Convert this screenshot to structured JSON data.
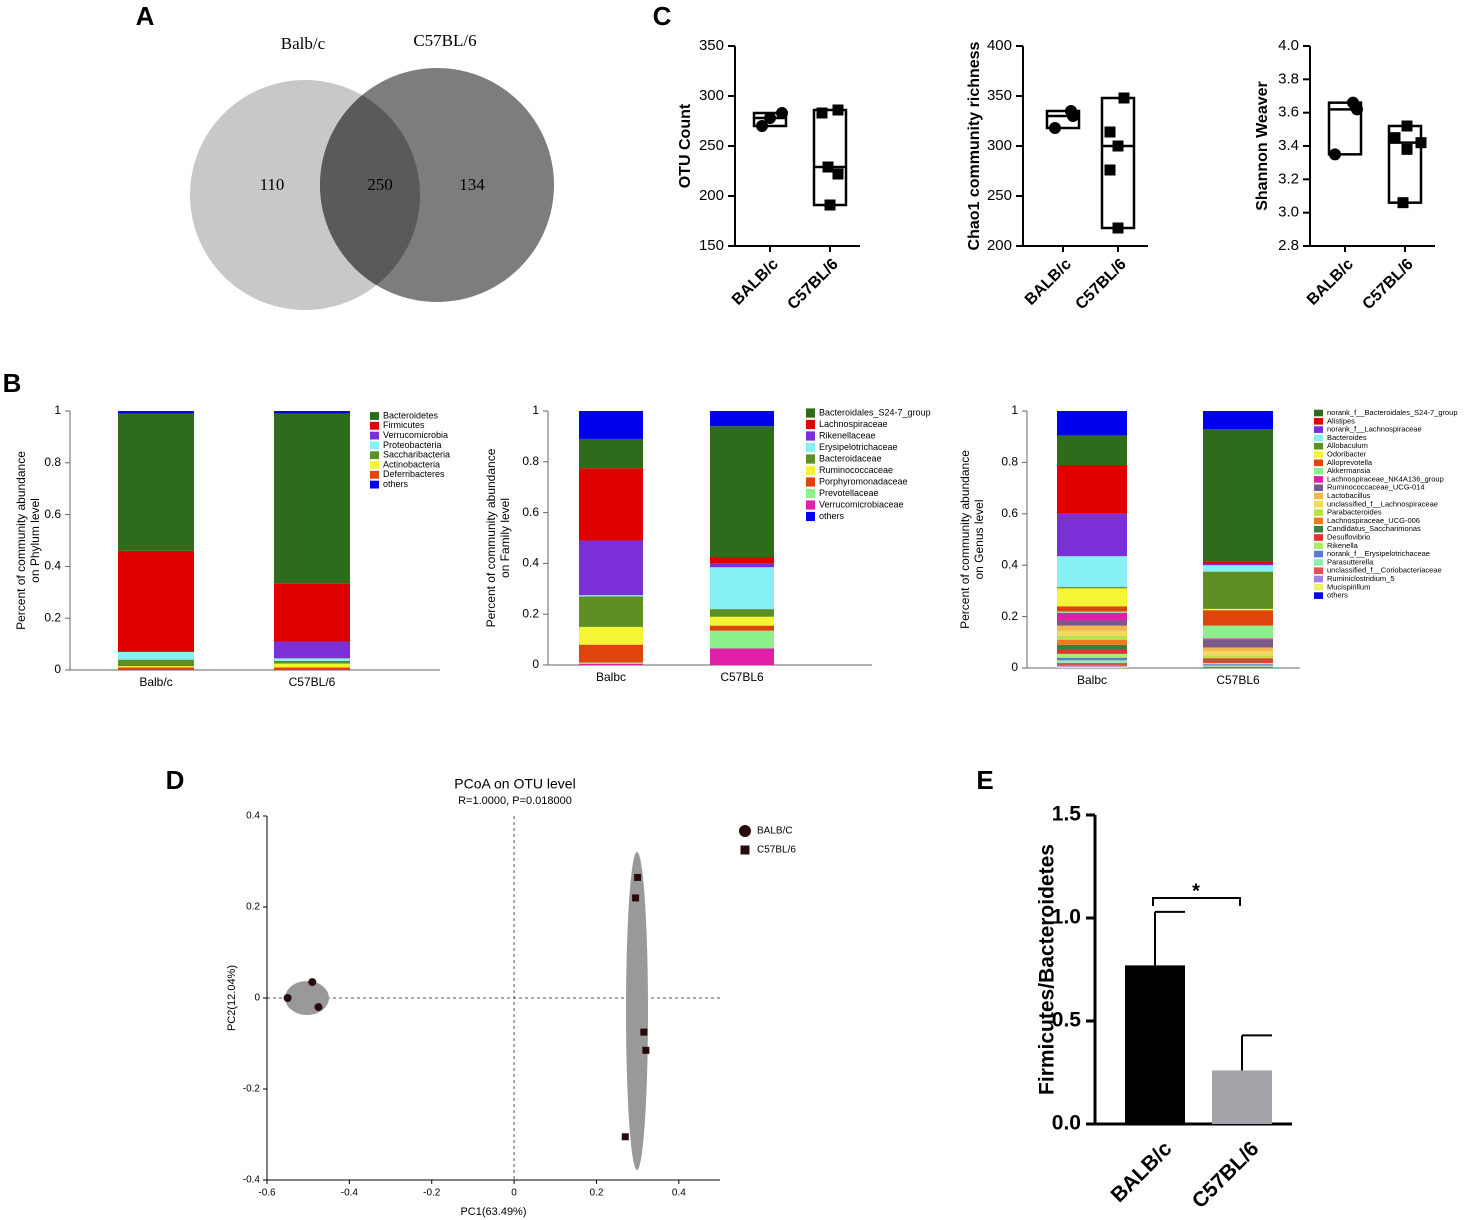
{
  "chart_data": [
    {
      "type": "venn",
      "panel": "A",
      "sets": [
        "Balb/c",
        "C57BL/6"
      ],
      "values": [
        110,
        250,
        134
      ],
      "colors": [
        "#c8c8c8",
        "#7d7d7d",
        "#5a5a5a"
      ]
    },
    {
      "type": "box",
      "panel": "C",
      "ylabel": "OTU Count",
      "categories": [
        "BALB/c",
        "C57BL/6"
      ],
      "groups": [
        {
          "marker": "circle",
          "values": [
            283,
            278,
            270
          ],
          "box": {
            "min": 270,
            "median": 278,
            "max": 283
          }
        },
        {
          "marker": "square",
          "values": [
            286,
            283,
            229,
            222,
            191
          ],
          "box": {
            "min": 191,
            "median": 229,
            "max": 286
          }
        }
      ],
      "ylim": [
        150,
        350
      ],
      "yticks": [
        150,
        200,
        250,
        300,
        350
      ]
    },
    {
      "type": "box",
      "ylabel": "Chao1 community richness",
      "categories": [
        "BALB/c",
        "C57BL/6"
      ],
      "groups": [
        {
          "marker": "circle",
          "values": [
            335,
            330,
            318
          ],
          "box": {
            "min": 318,
            "median": 330,
            "max": 335
          }
        },
        {
          "marker": "square",
          "values": [
            348,
            314,
            300,
            276,
            218
          ],
          "box": {
            "min": 218,
            "median": 300,
            "max": 348
          }
        }
      ],
      "ylim": [
        200,
        400
      ],
      "yticks": [
        200,
        250,
        300,
        350,
        400
      ]
    },
    {
      "type": "box",
      "ylabel": "Shannon Weaver",
      "categories": [
        "BALB/c",
        "C57BL/6"
      ],
      "groups": [
        {
          "marker": "circle",
          "values": [
            3.66,
            3.62,
            3.35
          ],
          "box": {
            "min": 3.35,
            "median": 3.62,
            "max": 3.66
          }
        },
        {
          "marker": "square",
          "values": [
            3.52,
            3.45,
            3.42,
            3.38,
            3.06
          ],
          "box": {
            "min": 3.06,
            "median": 3.42,
            "max": 3.52
          }
        }
      ],
      "ylim": [
        2.8,
        4.0
      ],
      "yticks": [
        2.8,
        {
          "value": 3,
          "label": "3.0"
        },
        3.2,
        3.4,
        3.6,
        3.8,
        {
          "value": 4,
          "label": "4.0"
        }
      ]
    },
    {
      "type": "stacked_bar",
      "panel": "B",
      "ylabel": [
        "Percent of community abundance",
        "on Phylum level"
      ],
      "categories": [
        "Balb/c",
        "C57BL/6"
      ],
      "series": [
        {
          "name": "Bacteroidetes",
          "color": "#2e6b1a",
          "values": [
            0.53,
            0.655
          ]
        },
        {
          "name": "Firmicutes",
          "color": "#e00000",
          "values": [
            0.39,
            0.225
          ]
        },
        {
          "name": "Verrucomicrobia",
          "color": "#7b2fd6",
          "values": [
            0.0,
            0.065
          ]
        },
        {
          "name": "Proteobacteria",
          "color": "#86f0f5",
          "values": [
            0.03,
            0.01
          ]
        },
        {
          "name": "Saccharibacteria",
          "color": "#5e8f22",
          "values": [
            0.025,
            0.01
          ]
        },
        {
          "name": "Actinobacteria",
          "color": "#f5f536",
          "values": [
            0.005,
            0.015
          ]
        },
        {
          "name": "Deferribacteres",
          "color": "#e0440e",
          "values": [
            0.01,
            0.01
          ]
        },
        {
          "name": "others",
          "color": "#0000f0",
          "values": [
            0.01,
            0.01
          ]
        }
      ],
      "ylim": [
        0,
        1
      ],
      "yticks": [
        0,
        0.2,
        0.4,
        0.6,
        0.8,
        1
      ]
    },
    {
      "type": "stacked_bar",
      "ylabel": [
        "Percent of community abundance",
        "on Family level"
      ],
      "categories": [
        "Balbc",
        "C57BL6"
      ],
      "series": [
        {
          "name": "Bacteroidales_S24-7_group",
          "color": "#2e6b1a",
          "values": [
            0.115,
            0.515
          ]
        },
        {
          "name": "Lachnospiraceae",
          "color": "#e00000",
          "values": [
            0.285,
            0.025
          ]
        },
        {
          "name": "Rikenellaceae",
          "color": "#7b2fd6",
          "values": [
            0.215,
            0.015
          ]
        },
        {
          "name": "Erysipelotrichaceae",
          "color": "#86f0f5",
          "values": [
            0.005,
            0.165
          ]
        },
        {
          "name": "Bacteroidaceae",
          "color": "#5e8f22",
          "values": [
            0.12,
            0.03
          ]
        },
        {
          "name": "Ruminococcaceae",
          "color": "#f5f536",
          "values": [
            0.07,
            0.035
          ]
        },
        {
          "name": "Porphyromonadaceae",
          "color": "#e0440e",
          "values": [
            0.07,
            0.02
          ]
        },
        {
          "name": "Prevotellaceae",
          "color": "#8cf08c",
          "values": [
            0.005,
            0.07
          ]
        },
        {
          "name": "Verrucomicrobiaceae",
          "color": "#e020a8",
          "values": [
            0.005,
            0.065
          ]
        },
        {
          "name": "others",
          "color": "#0000f0",
          "values": [
            0.11,
            0.06
          ]
        }
      ],
      "ylim": [
        0,
        1
      ],
      "yticks": [
        0,
        0.2,
        0.4,
        0.6,
        0.8,
        1
      ]
    },
    {
      "type": "stacked_bar",
      "ylabel": [
        "Percent of community abundance",
        "on Genus level"
      ],
      "categories": [
        "Balbc",
        "C57BL6"
      ],
      "series": [
        {
          "name": "norank_f__Bacteroidales_S24-7_group",
          "color": "#2e6b1a",
          "values": [
            0.115,
            0.515
          ]
        },
        {
          "name": "Alistipes",
          "color": "#e00000",
          "values": [
            0.19,
            0.01
          ]
        },
        {
          "name": "norank_f__Lachnospiraceae",
          "color": "#7b2fd6",
          "values": [
            0.165,
            0.005
          ]
        },
        {
          "name": "Bacteroides",
          "color": "#86f0f5",
          "values": [
            0.12,
            0.025
          ]
        },
        {
          "name": "Allobaculum",
          "color": "#5e8f22",
          "values": [
            0.005,
            0.145
          ]
        },
        {
          "name": "Odoribacter",
          "color": "#f5f536",
          "values": [
            0.07,
            0.005
          ]
        },
        {
          "name": "Alloprevotella",
          "color": "#e0440e",
          "values": [
            0.02,
            0.06
          ]
        },
        {
          "name": "Akkermansia",
          "color": "#8cf08c",
          "values": [
            0.005,
            0.05
          ]
        },
        {
          "name": "Lachnospiraceae_NK4A136_group",
          "color": "#e020a8",
          "values": [
            0.03,
            0.005
          ]
        },
        {
          "name": "Ruminococcaceae_UCG-014",
          "color": "#7a5a8a",
          "values": [
            0.02,
            0.03
          ]
        },
        {
          "name": "Lactobacillus",
          "color": "#f2b84b",
          "values": [
            0.02,
            0.015
          ]
        },
        {
          "name": "unclassified_f__Lachnospiraceae",
          "color": "#f5d860",
          "values": [
            0.02,
            0.015
          ]
        },
        {
          "name": "Parabacteroides",
          "color": "#b4e34a",
          "values": [
            0.015,
            0.01
          ]
        },
        {
          "name": "Lachnospiraceae_UCG-006",
          "color": "#f07a1e",
          "values": [
            0.02,
            0.005
          ]
        },
        {
          "name": "Candidatus_Saccharimonas",
          "color": "#3e7f3e",
          "values": [
            0.02,
            0.005
          ]
        },
        {
          "name": "Desulfovibrio",
          "color": "#e83030",
          "values": [
            0.015,
            0.01
          ]
        },
        {
          "name": "Rikenella",
          "color": "#a8f068",
          "values": [
            0.015,
            0.005
          ]
        },
        {
          "name": "norank_f__Erysipelotrichaceae",
          "color": "#5a7ad8",
          "values": [
            0.01,
            0.005
          ]
        },
        {
          "name": "Parasutterella",
          "color": "#8cf0b0",
          "values": [
            0.01,
            0.005
          ]
        },
        {
          "name": "unclassified_f__Coriobacteriaceae",
          "color": "#e05050",
          "values": [
            0.01,
            0.005
          ]
        },
        {
          "name": "Ruminiclostridium_5",
          "color": "#a080e0",
          "values": [
            0.005,
            0
          ]
        },
        {
          "name": "Mucispirillum",
          "color": "#f0f070",
          "values": [
            0.005,
            0
          ]
        },
        {
          "name": "others",
          "color": "#0000f0",
          "values": [
            0.095,
            0.07
          ]
        }
      ],
      "ylim": [
        0,
        1
      ],
      "yticks": [
        0,
        0.2,
        0.4,
        0.6,
        0.8,
        1
      ]
    },
    {
      "type": "scatter",
      "panel": "D",
      "title": "PCoA on OTU level",
      "subtitle": "R=1.0000, P=0.018000",
      "xlabel": "PC1(63.49%)",
      "ylabel": "PC2(12.04%)",
      "series": [
        {
          "name": "BALB/C",
          "color": "#2a0a0a",
          "marker": "circle",
          "x": [
            -0.55,
            -0.49,
            -0.475
          ],
          "y": [
            0.0,
            0.035,
            -0.02
          ]
        },
        {
          "name": "C57BL/6",
          "color": "#2a0a0a",
          "marker": "square",
          "x": [
            0.3,
            0.295,
            0.315,
            0.32,
            0.27
          ],
          "y": [
            0.265,
            0.22,
            -0.075,
            -0.115,
            -0.305
          ]
        }
      ],
      "xlim": [
        -0.6,
        0.5
      ],
      "ylim": [
        -0.4,
        0.4
      ],
      "xticks": [
        -0.6,
        -0.4,
        -0.2,
        0,
        0.2,
        0.4
      ],
      "yticks": [
        -0.4,
        -0.2,
        0,
        0.2,
        0.4
      ]
    },
    {
      "type": "bar",
      "panel": "E",
      "ylabel": "Firmicutes/Bacteroidetes",
      "categories": [
        "BALB/c",
        "C57BL/6"
      ],
      "values": [
        0.77,
        0.26
      ],
      "errors": [
        0.26,
        0.17
      ],
      "colors": [
        "#000000",
        "#a3a3aa"
      ],
      "annotation": "*",
      "ylim": [
        0,
        1.5
      ],
      "yticks": [
        {
          "value": 0,
          "label": "0.0"
        },
        0.5,
        {
          "value": 1,
          "label": "1.0"
        },
        1.5
      ]
    }
  ]
}
